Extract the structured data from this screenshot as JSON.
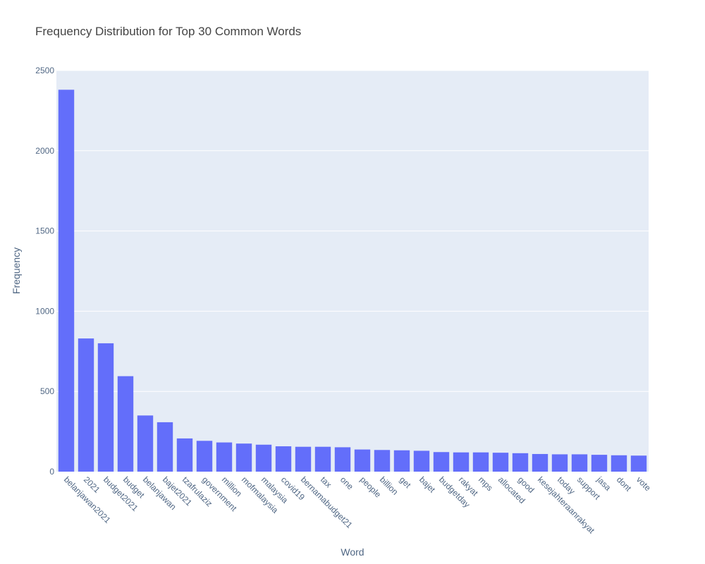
{
  "chart_data": {
    "type": "bar",
    "title": "Frequency Distribution for Top 30 Common Words",
    "xlabel": "Word",
    "ylabel": "Frequency",
    "ylim": [
      0,
      2500
    ],
    "yticks": [
      "0",
      "500",
      "1000",
      "1500",
      "2000",
      "2500"
    ],
    "categories": [
      "belanjawan2021",
      "2021",
      "budget2021",
      "budget",
      "belanjawan",
      "bajet2021",
      "tzafrulaziz",
      "government",
      "million",
      "mofmalaysia",
      "malaysia",
      "covid19",
      "bernamabudget21",
      "tax",
      "one",
      "people",
      "billion",
      "get",
      "bajet",
      "budgetday",
      "rakyat",
      "mps",
      "allocated",
      "good",
      "kesejahteraanrakyat",
      "today",
      "support",
      "jasa",
      "dont",
      "vote"
    ],
    "values": [
      2380,
      830,
      800,
      595,
      350,
      308,
      207,
      192,
      182,
      175,
      168,
      158,
      155,
      155,
      152,
      138,
      135,
      133,
      130,
      122,
      120,
      120,
      118,
      115,
      110,
      108,
      108,
      105,
      102,
      100
    ],
    "grid": true,
    "colors": {
      "bar": "#636efa",
      "plot_bg": "#e5ecf6",
      "grid": "#ffffff"
    }
  }
}
